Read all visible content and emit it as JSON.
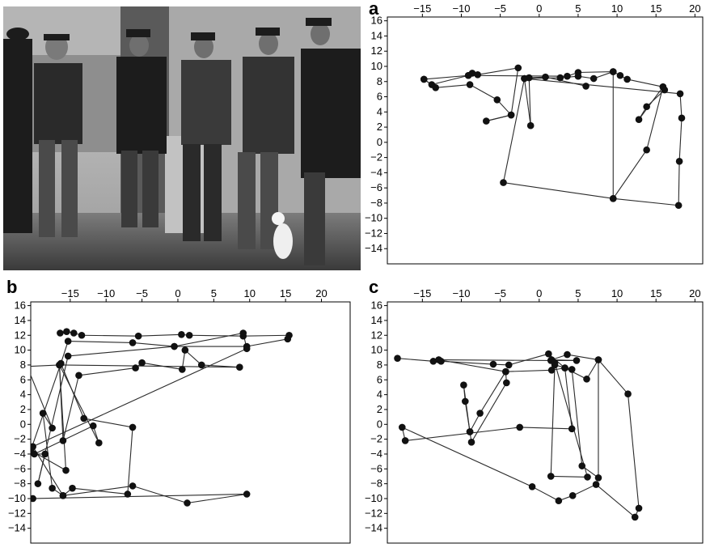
{
  "panels": {
    "a": "a",
    "b": "b",
    "c": "c"
  },
  "photo": {
    "description_name": "photo-fishermen",
    "style": "black-and-white"
  },
  "chart_data": [
    {
      "id": "a",
      "type": "line",
      "title": "",
      "xlabel": "",
      "ylabel": "",
      "xlim": [
        -19.5,
        21
      ],
      "ylim": [
        -16,
        16.5
      ],
      "xticks": [
        -15,
        -10,
        -5,
        0,
        5,
        10,
        15,
        20
      ],
      "yticks": [
        16,
        14,
        12,
        10,
        8,
        6,
        4,
        2,
        0,
        -2,
        -4,
        -6,
        -8,
        -10,
        -12,
        -14
      ],
      "x_axis_position": "top",
      "grid": false,
      "markers": true,
      "path": [
        [
          -14.8,
          8.3
        ],
        [
          -13.8,
          7.6
        ],
        [
          -9.1,
          8.8
        ],
        [
          -8.6,
          9.1
        ],
        [
          -7.9,
          8.9
        ],
        [
          -2.7,
          9.8
        ],
        [
          -3.6,
          3.6
        ],
        [
          -6.8,
          2.8
        ],
        [
          -3.6,
          3.6
        ],
        [
          -5.4,
          5.6
        ],
        [
          -8.9,
          7.6
        ],
        [
          -13.3,
          7.2
        ],
        [
          -14.8,
          8.3
        ],
        [
          -9.1,
          8.8
        ],
        [
          3.6,
          8.7
        ],
        [
          5.0,
          9.2
        ],
        [
          9.5,
          9.3
        ],
        [
          10.4,
          8.8
        ],
        [
          11.3,
          8.3
        ],
        [
          15.9,
          7.3
        ],
        [
          16.1,
          6.9
        ],
        [
          13.8,
          4.7
        ],
        [
          12.8,
          3.0
        ],
        [
          15.9,
          7.3
        ],
        [
          13.8,
          -1.0
        ],
        [
          9.5,
          -7.4
        ],
        [
          9.5,
          9.3
        ],
        [
          7.0,
          8.4
        ],
        [
          5.0,
          8.7
        ],
        [
          2.7,
          8.5
        ],
        [
          -1.9,
          8.4
        ],
        [
          -4.6,
          -5.3
        ],
        [
          9.5,
          -7.4
        ],
        [
          17.9,
          -8.3
        ],
        [
          18.0,
          -2.5
        ],
        [
          18.3,
          3.2
        ],
        [
          18.1,
          6.4
        ],
        [
          -1.9,
          8.4
        ],
        [
          -1.1,
          2.2
        ],
        [
          -1.3,
          8.5
        ],
        [
          0.8,
          8.6
        ],
        [
          6.0,
          7.4
        ]
      ]
    },
    {
      "id": "b",
      "type": "line",
      "title": "",
      "xlabel": "",
      "ylabel": "",
      "xlim": [
        -20.5,
        24
      ],
      "ylim": [
        -16,
        16.5
      ],
      "xticks": [
        -15,
        -10,
        -5,
        0,
        5,
        10,
        15,
        20
      ],
      "yticks": [
        16,
        14,
        12,
        10,
        8,
        6,
        4,
        2,
        0,
        -2,
        -4,
        -6,
        -8,
        -10,
        -12,
        -14
      ],
      "x_axis_position": "top",
      "grid": false,
      "markers": true,
      "path": [
        [
          -16.4,
          12.3
        ],
        [
          -15.5,
          12.5
        ],
        [
          -14.5,
          12.3
        ],
        [
          -13.4,
          12.0
        ],
        [
          -5.5,
          11.9
        ],
        [
          0.5,
          12.1
        ],
        [
          1.6,
          12.0
        ],
        [
          9.1,
          11.9
        ],
        [
          15.5,
          12.0
        ],
        [
          15.3,
          11.5
        ],
        [
          9.6,
          10.5
        ],
        [
          -0.5,
          10.5
        ],
        [
          -6.3,
          11.0
        ],
        [
          -15.3,
          11.2
        ],
        [
          -16.3,
          8.2
        ],
        [
          -16.5,
          8.0
        ],
        [
          -21.0,
          7.8
        ],
        [
          -17.5,
          -0.5
        ],
        [
          -18.8,
          1.5
        ],
        [
          -17.5,
          -8.6
        ],
        [
          -16.0,
          -9.6
        ],
        [
          -14.7,
          -8.6
        ],
        [
          -7.0,
          -9.4
        ],
        [
          -6.3,
          -0.4
        ],
        [
          -13.1,
          0.8
        ],
        [
          -16.3,
          8.2
        ],
        [
          -20.5,
          -3.5
        ],
        [
          -15.6,
          -6.2
        ],
        [
          -16.5,
          8.0
        ],
        [
          -16.0,
          -2.2
        ],
        [
          -13.8,
          6.6
        ],
        [
          -5.9,
          7.6
        ],
        [
          -5.0,
          8.3
        ],
        [
          0.6,
          7.4
        ],
        [
          1.0,
          10.0
        ],
        [
          3.3,
          8.0
        ],
        [
          8.6,
          7.7
        ],
        [
          -16.5,
          8.0
        ],
        [
          -11.0,
          -2.5
        ],
        [
          -11.8,
          -0.2
        ],
        [
          -20.0,
          -4.0
        ],
        [
          -18.5,
          -4.0
        ],
        [
          -19.5,
          -8.0
        ],
        [
          -15.3,
          9.2
        ],
        [
          -0.5,
          10.5
        ],
        [
          9.1,
          12.3
        ],
        [
          9.6,
          10.2
        ],
        [
          -20.2,
          -3.0
        ],
        [
          -16.0,
          -9.6
        ],
        [
          -6.3,
          -8.3
        ],
        [
          1.3,
          -10.6
        ],
        [
          9.6,
          -9.4
        ],
        [
          -20.2,
          -10.0
        ]
      ]
    },
    {
      "id": "c",
      "type": "line",
      "title": "",
      "xlabel": "",
      "ylabel": "",
      "xlim": [
        -19.5,
        21
      ],
      "ylim": [
        -16,
        16.5
      ],
      "xticks": [
        -15,
        -10,
        -5,
        0,
        5,
        10,
        15,
        20
      ],
      "yticks": [
        16,
        14,
        12,
        10,
        8,
        6,
        4,
        2,
        0,
        -2,
        -4,
        -6,
        -8,
        -10,
        -12,
        -14
      ],
      "x_axis_position": "top",
      "grid": false,
      "markers": true,
      "path": [
        [
          -18.2,
          8.9
        ],
        [
          -13.6,
          8.5
        ],
        [
          -12.9,
          8.7
        ],
        [
          -12.6,
          8.5
        ],
        [
          -5.9,
          8.1
        ],
        [
          -3.9,
          8.0
        ],
        [
          1.2,
          9.5
        ],
        [
          3.3,
          7.6
        ],
        [
          6.1,
          6.1
        ],
        [
          7.6,
          8.7
        ],
        [
          3.6,
          9.4
        ],
        [
          1.6,
          8.7
        ],
        [
          4.8,
          8.6
        ],
        [
          1.5,
          8.6
        ],
        [
          -12.9,
          8.7
        ],
        [
          -4.3,
          7.1
        ],
        [
          -4.2,
          5.6
        ],
        [
          -8.7,
          -2.4
        ],
        [
          -8.9,
          -1.0
        ],
        [
          -9.5,
          3.1
        ],
        [
          -9.7,
          5.3
        ],
        [
          -8.9,
          -1.0
        ],
        [
          -7.6,
          1.5
        ],
        [
          -4.3,
          7.1
        ],
        [
          1.6,
          7.3
        ],
        [
          3.3,
          7.6
        ],
        [
          4.2,
          -0.6
        ],
        [
          -2.5,
          -0.4
        ],
        [
          -17.2,
          -2.2
        ],
        [
          -17.6,
          -0.4
        ],
        [
          -0.9,
          -8.4
        ],
        [
          2.5,
          -10.3
        ],
        [
          4.3,
          -9.6
        ],
        [
          7.3,
          -8.1
        ],
        [
          12.3,
          -12.5
        ],
        [
          12.8,
          -11.3
        ],
        [
          11.4,
          4.1
        ],
        [
          7.6,
          8.7
        ],
        [
          7.6,
          -7.2
        ],
        [
          5.5,
          -5.6
        ],
        [
          4.2,
          7.4
        ],
        [
          2.0,
          8.0
        ],
        [
          1.5,
          -7.0
        ],
        [
          6.2,
          -7.1
        ],
        [
          2.0,
          8.3
        ]
      ]
    }
  ]
}
